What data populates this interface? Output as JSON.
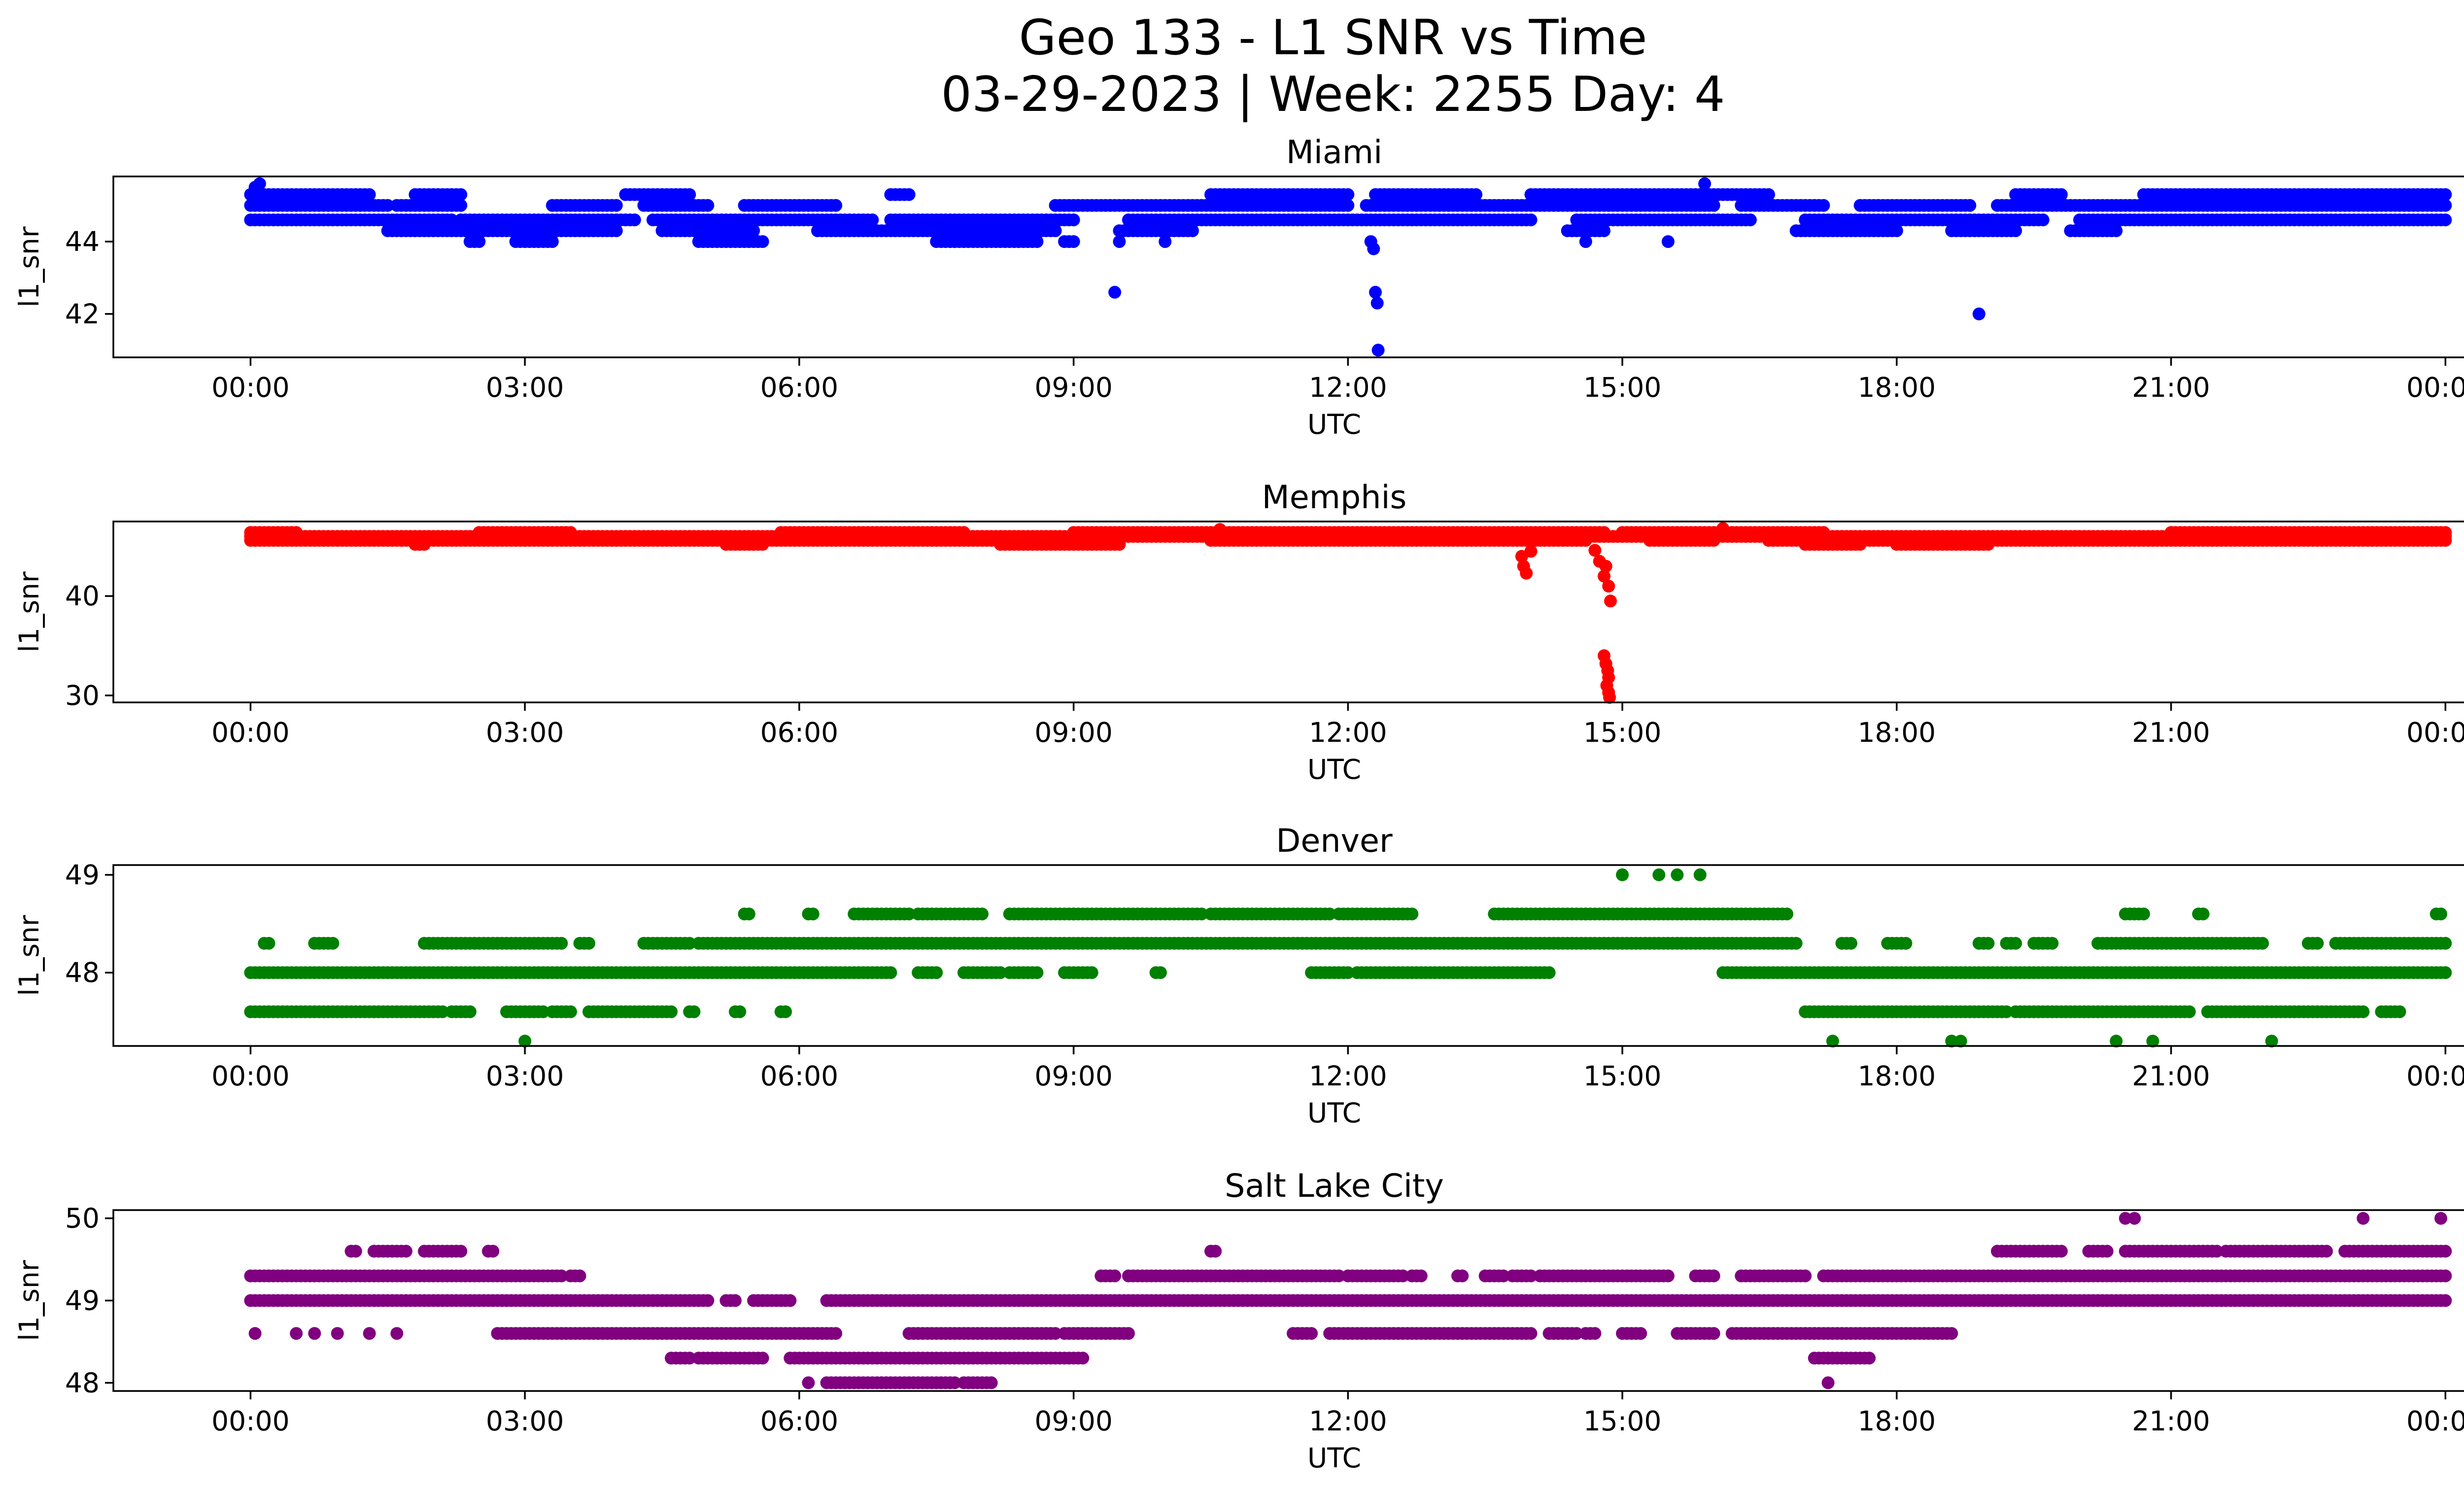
{
  "figure_title_line1": "Geo 133 - L1 SNR vs Time",
  "figure_title_line2": "03-29-2023 | Week: 2255 Day: 4",
  "chart_data": [
    {
      "type": "scatter",
      "title": "Miami",
      "xlabel": "UTC",
      "ylabel": "l1_snr",
      "color": "#0000ff",
      "xlim_hours": [
        -1.5,
        25.2
      ],
      "ylim": [
        40.8,
        45.8
      ],
      "xticks_hours": [
        0,
        3,
        6,
        9,
        12,
        15,
        18,
        21,
        24
      ],
      "xtick_labels": [
        "00:00",
        "03:00",
        "06:00",
        "09:00",
        "12:00",
        "15:00",
        "18:00",
        "21:00",
        "00:00"
      ],
      "yticks": [
        42,
        44
      ],
      "ytick_labels": [
        "42",
        "44"
      ],
      "level_segments": [
        {
          "y": 45.3,
          "ranges": [
            [
              0,
              1.3
            ],
            [
              1.8,
              2.3
            ],
            [
              4.1,
              4.8
            ],
            [
              7.0,
              7.2
            ],
            [
              10.5,
              12.0
            ],
            [
              12.3,
              13.4
            ],
            [
              14.0,
              15.8
            ],
            [
              15.8,
              16.6
            ],
            [
              19.3,
              19.8
            ],
            [
              20.7,
              24.0
            ]
          ]
        },
        {
          "y": 45.0,
          "ranges": [
            [
              0,
              1.5
            ],
            [
              1.6,
              2.3
            ],
            [
              3.3,
              4.0
            ],
            [
              4.3,
              5.0
            ],
            [
              5.4,
              6.4
            ],
            [
              8.8,
              12.0
            ],
            [
              12.2,
              16.0
            ],
            [
              16.3,
              17.2
            ],
            [
              17.6,
              18.8
            ],
            [
              19.1,
              24.0
            ]
          ]
        },
        {
          "y": 44.6,
          "ranges": [
            [
              0,
              2.2
            ],
            [
              2.3,
              4.2
            ],
            [
              4.4,
              6.8
            ],
            [
              7.0,
              9.0
            ],
            [
              9.6,
              14.0
            ],
            [
              14.5,
              16.4
            ],
            [
              17.0,
              19.6
            ],
            [
              20.0,
              24.0
            ]
          ]
        },
        {
          "y": 44.3,
          "ranges": [
            [
              1.5,
              4.0
            ],
            [
              4.5,
              5.5
            ],
            [
              6.2,
              8.8
            ],
            [
              9.5,
              10.3
            ],
            [
              14.4,
              14.8
            ],
            [
              16.9,
              18.0
            ],
            [
              18.6,
              19.3
            ],
            [
              19.9,
              20.4
            ]
          ]
        },
        {
          "y": 44.0,
          "ranges": [
            [
              2.4,
              2.5
            ],
            [
              2.9,
              3.3
            ],
            [
              4.9,
              5.6
            ],
            [
              7.5,
              8.6
            ],
            [
              8.9,
              9.0
            ]
          ]
        }
      ],
      "scatter_points": [
        [
          0.05,
          45.5
        ],
        [
          0.1,
          45.6
        ],
        [
          9.45,
          42.6
        ],
        [
          9.5,
          44.0
        ],
        [
          10.0,
          44.0
        ],
        [
          12.25,
          44.0
        ],
        [
          12.28,
          43.8
        ],
        [
          12.3,
          42.6
        ],
        [
          12.32,
          42.3
        ],
        [
          12.33,
          41.0
        ],
        [
          14.6,
          44.0
        ],
        [
          15.5,
          44.0
        ],
        [
          15.9,
          45.6
        ],
        [
          18.9,
          42.0
        ]
      ]
    },
    {
      "type": "scatter",
      "title": "Memphis",
      "xlabel": "UTC",
      "ylabel": "l1_snr",
      "color": "#ff0000",
      "xlim_hours": [
        -1.5,
        25.2
      ],
      "ylim": [
        29.3,
        47.5
      ],
      "xticks_hours": [
        0,
        3,
        6,
        9,
        12,
        15,
        18,
        21,
        24
      ],
      "xtick_labels": [
        "00:00",
        "03:00",
        "06:00",
        "09:00",
        "12:00",
        "15:00",
        "18:00",
        "21:00",
        "00:00"
      ],
      "yticks": [
        30,
        40
      ],
      "ytick_labels": [
        "30",
        "40"
      ],
      "level_segments": [
        {
          "y": 46.4,
          "ranges": [
            [
              0,
              0.5
            ],
            [
              2.5,
              3.5
            ],
            [
              5.8,
              7.8
            ],
            [
              9.0,
              14.8
            ],
            [
              15.0,
              17.2
            ],
            [
              21.0,
              24.0
            ]
          ]
        },
        {
          "y": 46.0,
          "ranges": [
            [
              0,
              24.0
            ]
          ]
        },
        {
          "y": 45.6,
          "ranges": [
            [
              0,
              3.0
            ],
            [
              3.0,
              9.4
            ],
            [
              10.5,
              14.6
            ],
            [
              15.3,
              16.0
            ],
            [
              16.6,
              24.0
            ]
          ]
        },
        {
          "y": 45.2,
          "ranges": [
            [
              1.8,
              1.9
            ],
            [
              5.2,
              5.6
            ],
            [
              8.2,
              9.5
            ],
            [
              17.0,
              17.6
            ],
            [
              18.0,
              19.0
            ]
          ]
        }
      ],
      "scatter_points": [
        [
          13.9,
          44.0
        ],
        [
          13.92,
          43.0
        ],
        [
          13.95,
          42.3
        ],
        [
          14.0,
          44.5
        ],
        [
          14.7,
          44.6
        ],
        [
          14.75,
          43.5
        ],
        [
          14.8,
          42.0
        ],
        [
          14.82,
          43.0
        ],
        [
          14.85,
          41.0
        ],
        [
          14.87,
          39.5
        ],
        [
          14.8,
          34.0
        ],
        [
          14.82,
          33.2
        ],
        [
          14.84,
          32.5
        ],
        [
          14.85,
          31.8
        ],
        [
          14.83,
          31.0
        ],
        [
          14.85,
          30.3
        ],
        [
          14.86,
          29.8
        ],
        [
          16.1,
          46.8
        ],
        [
          10.6,
          46.7
        ]
      ]
    },
    {
      "type": "scatter",
      "title": "Denver",
      "xlabel": "UTC",
      "ylabel": "l1_snr",
      "color": "#008000",
      "xlim_hours": [
        -1.5,
        25.2
      ],
      "ylim": [
        47.25,
        49.1
      ],
      "xticks_hours": [
        0,
        3,
        6,
        9,
        12,
        15,
        18,
        21,
        24
      ],
      "xtick_labels": [
        "00:00",
        "03:00",
        "06:00",
        "09:00",
        "12:00",
        "15:00",
        "18:00",
        "21:00",
        "00:00"
      ],
      "yticks": [
        48,
        49
      ],
      "ytick_labels": [
        "48",
        "49"
      ],
      "level_segments": [
        {
          "y": 48.6,
          "ranges": [
            [
              5.4,
              5.45
            ],
            [
              6.1,
              6.15
            ],
            [
              6.6,
              7.2
            ],
            [
              7.3,
              8.0
            ],
            [
              8.3,
              9.0
            ],
            [
              9.0,
              10.4
            ],
            [
              10.5,
              11.8
            ],
            [
              11.9,
              12.7
            ],
            [
              13.6,
              14.6
            ],
            [
              14.6,
              16.8
            ],
            [
              20.5,
              20.7
            ],
            [
              21.3,
              21.35
            ],
            [
              23.9,
              23.95
            ]
          ]
        },
        {
          "y": 48.3,
          "ranges": [
            [
              0.15,
              0.2
            ],
            [
              0.7,
              0.9
            ],
            [
              1.9,
              3.4
            ],
            [
              3.6,
              3.7
            ],
            [
              4.3,
              4.8
            ],
            [
              4.9,
              16.9
            ],
            [
              17.4,
              17.5
            ],
            [
              17.9,
              18.1
            ],
            [
              18.9,
              19.0
            ],
            [
              19.2,
              19.3
            ],
            [
              19.5,
              19.7
            ],
            [
              20.2,
              22.0
            ],
            [
              22.5,
              22.6
            ],
            [
              22.8,
              24.0
            ]
          ]
        },
        {
          "y": 48.0,
          "ranges": [
            [
              0,
              7.0
            ],
            [
              7.3,
              7.5
            ],
            [
              7.8,
              8.2
            ],
            [
              8.3,
              8.6
            ],
            [
              8.9,
              9.2
            ],
            [
              9.9,
              9.95
            ],
            [
              11.6,
              12.0
            ],
            [
              12.1,
              14.2
            ],
            [
              16.1,
              24.0
            ]
          ]
        },
        {
          "y": 47.6,
          "ranges": [
            [
              0,
              2.1
            ],
            [
              2.2,
              2.4
            ],
            [
              2.8,
              3.2
            ],
            [
              3.3,
              3.5
            ],
            [
              3.7,
              4.6
            ],
            [
              4.8,
              4.85
            ],
            [
              5.3,
              5.35
            ],
            [
              5.8,
              5.85
            ],
            [
              17.0,
              19.2
            ],
            [
              19.3,
              21.2
            ],
            [
              21.4,
              23.1
            ],
            [
              23.3,
              23.5
            ]
          ]
        }
      ],
      "scatter_points": [
        [
          3.0,
          47.3
        ],
        [
          17.3,
          47.3
        ],
        [
          18.6,
          47.3
        ],
        [
          18.7,
          47.3
        ],
        [
          20.4,
          47.3
        ],
        [
          20.8,
          47.3
        ],
        [
          22.1,
          47.3
        ],
        [
          15.0,
          49.0
        ],
        [
          15.4,
          49.0
        ],
        [
          15.6,
          49.0
        ],
        [
          15.85,
          49.0
        ]
      ]
    },
    {
      "type": "scatter",
      "title": "Salt Lake City",
      "xlabel": "UTC",
      "ylabel": "l1_snr",
      "color": "#800080",
      "xlim_hours": [
        -1.5,
        25.2
      ],
      "ylim": [
        47.9,
        50.1
      ],
      "xticks_hours": [
        0,
        3,
        6,
        9,
        12,
        15,
        18,
        21,
        24
      ],
      "xtick_labels": [
        "00:00",
        "03:00",
        "06:00",
        "09:00",
        "12:00",
        "15:00",
        "18:00",
        "21:00",
        "00:00"
      ],
      "yticks": [
        48,
        49,
        50
      ],
      "ytick_labels": [
        "48",
        "49",
        "50"
      ],
      "level_segments": [
        {
          "y": 49.6,
          "ranges": [
            [
              1.1,
              1.15
            ],
            [
              1.35,
              1.7
            ],
            [
              1.9,
              2.3
            ],
            [
              2.6,
              2.65
            ],
            [
              10.5,
              10.55
            ],
            [
              19.1,
              19.8
            ],
            [
              20.1,
              20.3
            ],
            [
              20.5,
              21.5
            ],
            [
              21.6,
              22.7
            ],
            [
              22.9,
              24.0
            ]
          ]
        },
        {
          "y": 49.3,
          "ranges": [
            [
              0,
              3.4
            ],
            [
              3.5,
              3.6
            ],
            [
              9.3,
              9.45
            ],
            [
              9.6,
              11.9
            ],
            [
              12.0,
              12.6
            ],
            [
              12.7,
              12.8
            ],
            [
              13.2,
              13.25
            ],
            [
              13.5,
              13.7
            ],
            [
              13.8,
              14.0
            ],
            [
              14.1,
              15.5
            ],
            [
              15.8,
              16.0
            ],
            [
              16.3,
              17.0
            ],
            [
              17.2,
              24.0
            ]
          ]
        },
        {
          "y": 49.0,
          "ranges": [
            [
              0,
              5.0
            ],
            [
              5.2,
              5.3
            ],
            [
              5.5,
              5.9
            ],
            [
              6.3,
              24.0
            ]
          ]
        },
        {
          "y": 48.6,
          "ranges": [
            [
              2.7,
              6.4
            ],
            [
              7.2,
              8.8
            ],
            [
              8.9,
              9.6
            ],
            [
              11.4,
              11.6
            ],
            [
              11.8,
              14.0
            ],
            [
              14.2,
              14.5
            ],
            [
              14.6,
              14.7
            ],
            [
              15.0,
              15.2
            ],
            [
              15.6,
              16.0
            ],
            [
              16.2,
              18.6
            ]
          ]
        },
        {
          "y": 48.3,
          "ranges": [
            [
              4.6,
              4.8
            ],
            [
              4.9,
              5.6
            ],
            [
              5.9,
              9.1
            ],
            [
              17.1,
              17.7
            ]
          ]
        },
        {
          "y": 48.0,
          "ranges": [
            [
              6.3,
              7.7
            ],
            [
              7.8,
              8.1
            ]
          ]
        }
      ],
      "scatter_points": [
        [
          0.05,
          48.6
        ],
        [
          0.5,
          48.6
        ],
        [
          0.7,
          48.6
        ],
        [
          0.95,
          48.6
        ],
        [
          1.3,
          48.6
        ],
        [
          1.6,
          48.6
        ],
        [
          6.1,
          48.0
        ],
        [
          17.25,
          48.0
        ],
        [
          20.5,
          50.0
        ],
        [
          20.6,
          50.0
        ],
        [
          23.1,
          50.0
        ],
        [
          23.95,
          50.0
        ]
      ]
    }
  ]
}
